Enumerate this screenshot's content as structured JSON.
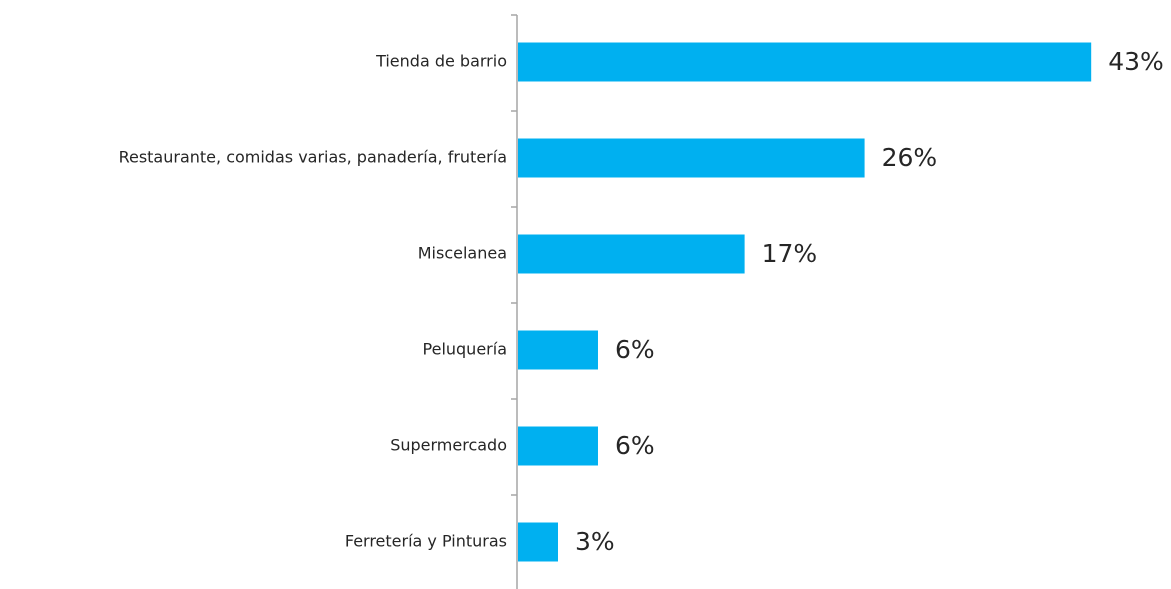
{
  "chart_data": {
    "type": "bar",
    "orientation": "horizontal",
    "categories": [
      "Tienda de barrio",
      "Restaurante, comidas varias, panadería, frutería",
      "Miscelanea",
      "Peluquería",
      "Supermercado",
      "Ferretería y Pinturas"
    ],
    "values": [
      43,
      26,
      17,
      6,
      6,
      3
    ],
    "value_labels": [
      "43%",
      "26%",
      "17%",
      "6%",
      "6%",
      "3%"
    ],
    "color": "#00b0f0"
  }
}
